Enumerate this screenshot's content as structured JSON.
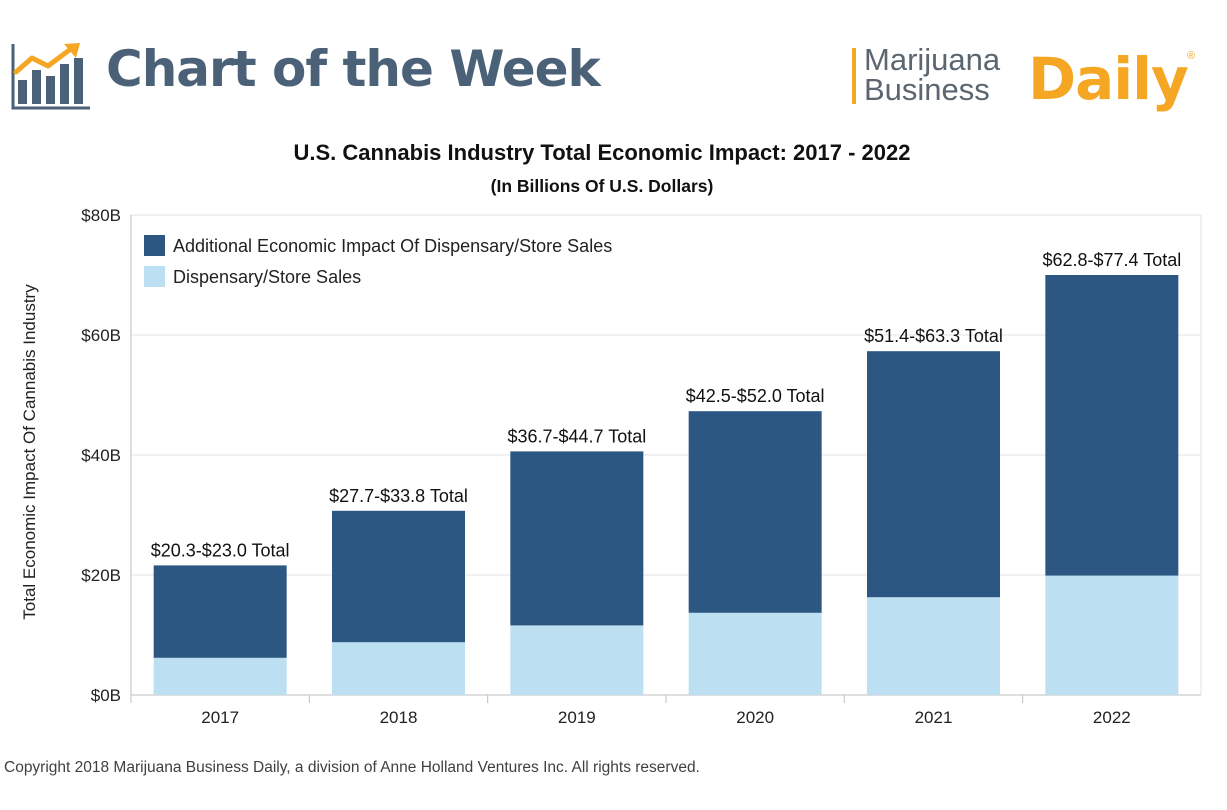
{
  "header": {
    "title": "Chart of the Week",
    "title_color": "#4a6177",
    "icon": "bar-chart-trend-icon",
    "icon_colors": {
      "bars": "#4a6177",
      "arrow": "#f5a623"
    },
    "brand": {
      "line1": "Marijuana",
      "line2": "Business",
      "daily": "Daily",
      "registered": "®",
      "accent_color": "#f5a623"
    }
  },
  "chart_data": {
    "type": "bar",
    "stacked": true,
    "title": "U.S. Cannabis Industry Total Economic Impact: 2017 - 2022",
    "subtitle": "(In Billions Of U.S. Dollars)",
    "xlabel": "",
    "ylabel": "Total Economic Impact Of Cannabis Industry",
    "categories": [
      "2017",
      "2018",
      "2019",
      "2020",
      "2021",
      "2022"
    ],
    "series": [
      {
        "name": "Dispensary/Store Sales",
        "color": "#bcdff1",
        "values": [
          6.2,
          8.8,
          11.6,
          13.7,
          16.3,
          19.9
        ]
      },
      {
        "name": "Additional Economic Impact Of Dispensary/Store Sales",
        "color": "#2c5783",
        "values": [
          15.4,
          21.9,
          29.0,
          33.6,
          41.0,
          50.1
        ]
      }
    ],
    "data_labels": [
      "$20.3-$23.0 Total",
      "$27.7-$33.8 Total",
      "$36.7-$44.7 Total",
      "$42.5-$52.0 Total",
      "$51.4-$63.3 Total",
      "$62.8-$77.4 Total"
    ],
    "ylim": [
      0,
      80
    ],
    "yticks": [
      0,
      20,
      40,
      60,
      80
    ],
    "ytick_labels": [
      "$0B",
      "$20B",
      "$40B",
      "$60B",
      "$80B"
    ],
    "legend": {
      "position": "top-left",
      "entries": [
        "Additional Economic Impact Of Dispensary/Store Sales",
        "Dispensary/Store Sales"
      ]
    },
    "grid": true
  },
  "footer": {
    "copyright": "Copyright 2018 Marijuana Business Daily, a division of Anne Holland Ventures Inc. All rights reserved."
  }
}
